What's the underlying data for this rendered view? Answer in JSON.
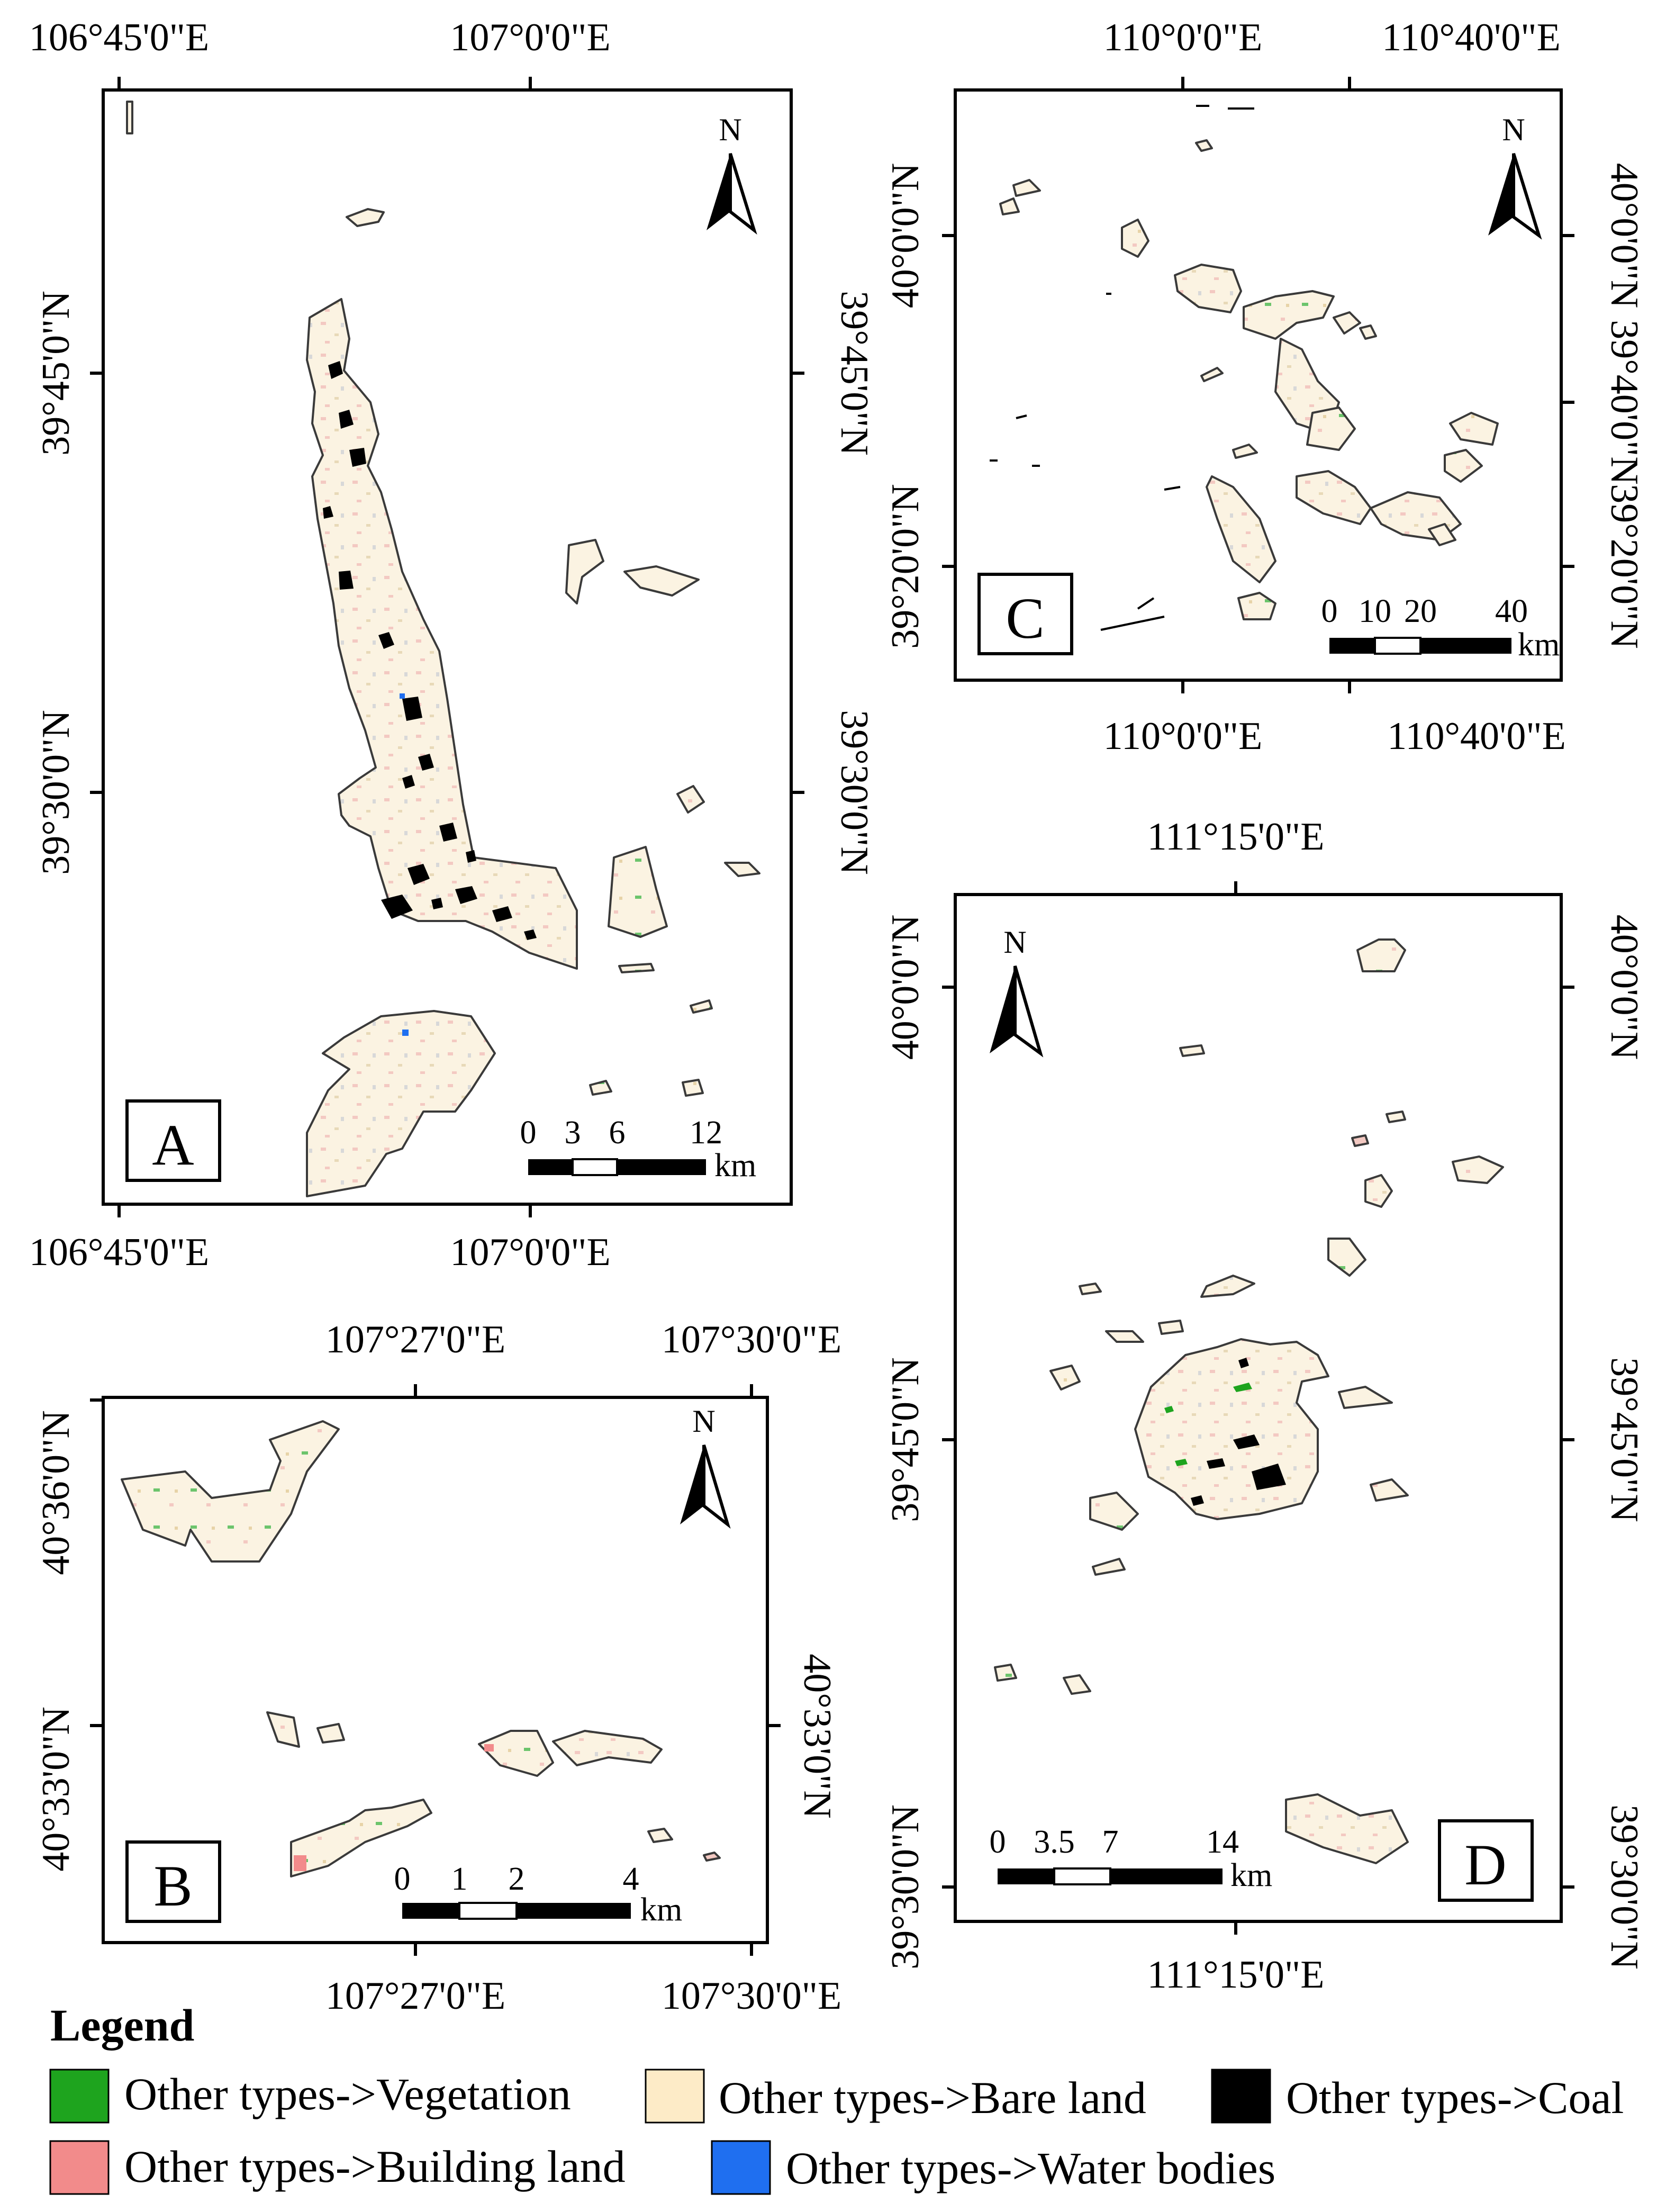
{
  "colors": {
    "vegetation": "#1ea41e",
    "bare_land": "#fdebc7",
    "coal": "#000000",
    "building_land": "#f28b8b",
    "water_bodies": "#1f6ff0",
    "frame": "#000000"
  },
  "panels": {
    "A": {
      "label": "A",
      "top_ticks": [
        "106°45'0\"E",
        "107°0'0\"E"
      ],
      "bottom_ticks": [
        "106°45'0\"E",
        "107°0'0\"E"
      ],
      "left_ticks": [
        "39°45'0\"N",
        "39°30'0\"N"
      ],
      "right_ticks": [
        "39°45'0\"N",
        "39°30'0\"N"
      ],
      "north": "N",
      "scale": {
        "ticks": [
          "0",
          "3",
          "6",
          "12"
        ],
        "unit": "km"
      }
    },
    "B": {
      "label": "B",
      "top_ticks": [
        "107°27'0\"E",
        "107°30'0\"E"
      ],
      "bottom_ticks": [
        "107°27'0\"E",
        "107°30'0\"E"
      ],
      "left_ticks": [
        "40°36'0\"N",
        "40°33'0\"N"
      ],
      "right_ticks": [
        "40°33'0\"N"
      ],
      "north": "N",
      "scale": {
        "ticks": [
          "0",
          "1",
          "2",
          "4"
        ],
        "unit": "km"
      }
    },
    "C": {
      "label": "C",
      "top_ticks": [
        "110°0'0\"E",
        "110°40'0\"E"
      ],
      "bottom_ticks": [
        "110°0'0\"E",
        "110°40'0\"E"
      ],
      "left_ticks": [
        "40°0'0\"N",
        "39°20'0\"N"
      ],
      "right_ticks": [
        "40°0'0\"N",
        "39°40'0\"N",
        "39°20'0\"N"
      ],
      "north": "N",
      "scale": {
        "ticks": [
          "0",
          "10",
          "20",
          "40"
        ],
        "unit": "km"
      }
    },
    "D": {
      "label": "D",
      "top_ticks": [
        "111°15'0\"E"
      ],
      "bottom_ticks": [
        "111°15'0\"E"
      ],
      "left_ticks": [
        "40°0'0\"N",
        "39°45'0\"N",
        "39°30'0\"N"
      ],
      "right_ticks": [
        "40°0'0\"N",
        "39°45'0\"N",
        "39°30'0\"N"
      ],
      "north": "N",
      "scale": {
        "ticks": [
          "0",
          "3.5",
          "7",
          "14"
        ],
        "unit": "km"
      }
    }
  },
  "legend": {
    "title": "Legend",
    "items": [
      {
        "key": "vegetation",
        "label": "Other types->Vegetation"
      },
      {
        "key": "bare_land",
        "label": "Other types->Bare land"
      },
      {
        "key": "coal",
        "label": "Other types->Coal"
      },
      {
        "key": "building_land",
        "label": "Other types->Building land"
      },
      {
        "key": "water_bodies",
        "label": "Other types->Water bodies"
      }
    ]
  }
}
